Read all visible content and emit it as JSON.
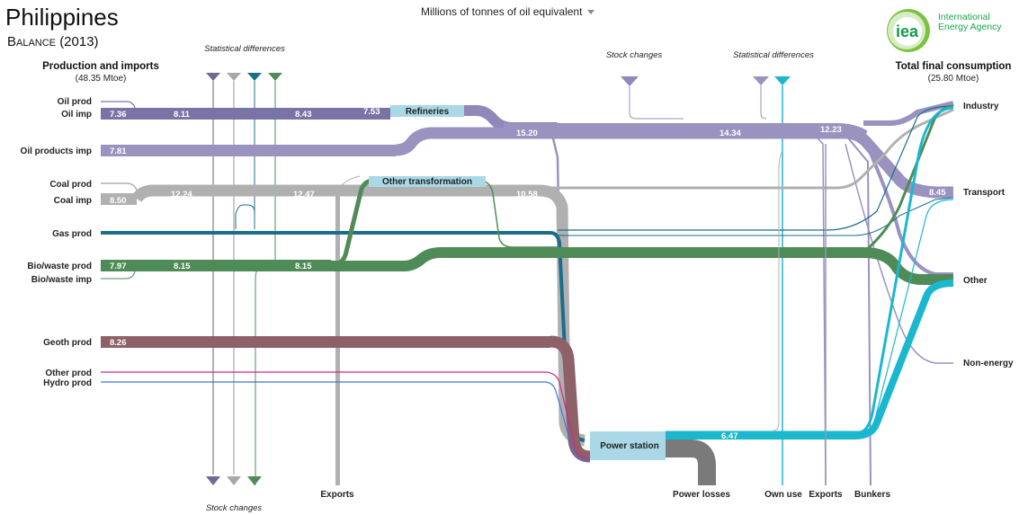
{
  "header": {
    "title": "Philippines",
    "subtitle": "Balance (2013)",
    "unit_selector": "Millions of tonnes of oil equivalent",
    "logo_mark": "iea",
    "logo_text_line1": "International",
    "logo_text_line2": "Energy Agency"
  },
  "left_header": {
    "title": "Production and imports",
    "total": "(48.35 Mtoe)"
  },
  "right_header": {
    "title": "Total final consumption",
    "total": "(25.80 Mtoe)"
  },
  "sources": [
    "Oil prod",
    "Oil imp",
    "Oil products imp",
    "Coal prod",
    "Coal imp",
    "Gas prod",
    "Bio/waste prod",
    "Bio/waste imp",
    "Geoth prod",
    "Other prod",
    "Hydro prod"
  ],
  "sinks": [
    "Industry",
    "Transport",
    "Other",
    "Non-energy"
  ],
  "nodes": {
    "refineries": "Refineries",
    "other_transformation": "Other transformation",
    "power_station": "Power station"
  },
  "side_labels": {
    "stat_diff_left": "Statistical differences",
    "stat_diff_right": "Statistical differences",
    "stock_changes_top": "Stock  changes",
    "stock_changes_bottom": "Stock changes",
    "exports": "Exports",
    "power_losses": "Power losses",
    "own_use": "Own use",
    "exports_right": "Exports",
    "bunkers": "Bunkers"
  },
  "flow_values": {
    "oil_imp": "7.36",
    "oil_mid1": "8.11",
    "oil_mid2": "8.43",
    "oil_ref_in": "7.53",
    "oil_products_imp": "7.81",
    "oil_products_mid": "15.20",
    "oil_products_mid2": "14.34",
    "oil_products_mid3": "12.23",
    "transport": "8.45",
    "coal_imp": "8.50",
    "coal_mid1": "12.24",
    "coal_mid2": "12.47",
    "coal_mid3": "10.58",
    "bio_prod": "7.97",
    "bio_mid1": "8.15",
    "bio_mid2": "8.15",
    "geoth_prod": "8.26",
    "power_out": "6.47"
  },
  "colors": {
    "oil": "#7a74a6",
    "oil_products": "#9a92bf",
    "coal": "#b0b0b0",
    "gas": "#1a6e8c",
    "bio": "#4f8b57",
    "geoth": "#8e6068",
    "other_prod": "#d0288f",
    "hydro": "#3c78d8",
    "power": "#1ab7cf",
    "node": "#aad8e6",
    "losses": "#7a7a7a"
  }
}
